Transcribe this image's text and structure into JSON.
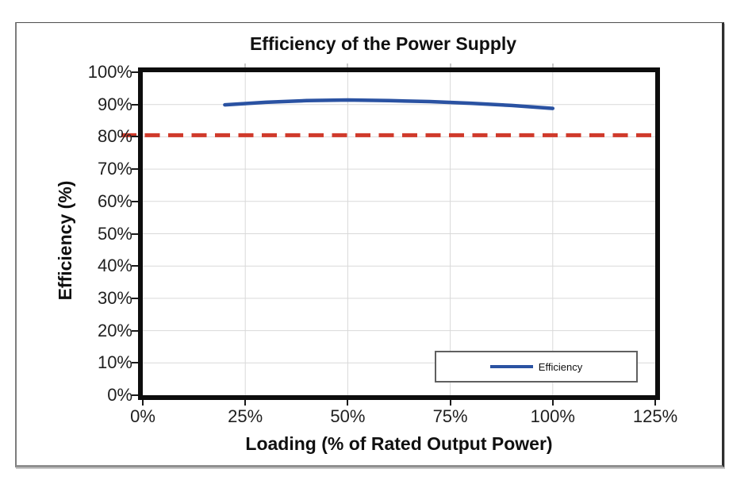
{
  "chart_data": {
    "type": "line",
    "title": "Efficiency of the Power Supply",
    "xlabel": "Loading (% of Rated Output Power)",
    "ylabel": "Efficiency (%)",
    "grid": true,
    "plot_background": "#ffffff",
    "x_axis": {
      "min": 0,
      "max": 125,
      "ticks": [
        {
          "value": 0,
          "label": "0%"
        },
        {
          "value": 25,
          "label": "25%"
        },
        {
          "value": 50,
          "label": "50%"
        },
        {
          "value": 75,
          "label": "75%"
        },
        {
          "value": 100,
          "label": "100%"
        },
        {
          "value": 125,
          "label": "125%"
        }
      ],
      "gridline_values": [
        25,
        50,
        75,
        100
      ]
    },
    "y_axis": {
      "min": 0,
      "max": 100,
      "ticks": [
        {
          "value": 0,
          "label": "0%"
        },
        {
          "value": 10,
          "label": "10%"
        },
        {
          "value": 20,
          "label": "20%"
        },
        {
          "value": 30,
          "label": "30%"
        },
        {
          "value": 40,
          "label": "40%"
        },
        {
          "value": 50,
          "label": "50%"
        },
        {
          "value": 60,
          "label": "60%"
        },
        {
          "value": 70,
          "label": "70%"
        },
        {
          "value": 80,
          "label": "80%"
        },
        {
          "value": 90,
          "label": "90%"
        },
        {
          "value": 100,
          "label": "100%"
        }
      ],
      "gridline_values": [
        10,
        20,
        30,
        40,
        50,
        60,
        70,
        80,
        90
      ]
    },
    "series": [
      {
        "name": "Efficiency",
        "color": "#2A52A2",
        "points": [
          [
            20,
            89.9
          ],
          [
            30,
            90.7
          ],
          [
            40,
            91.2
          ],
          [
            50,
            91.4
          ],
          [
            60,
            91.2
          ],
          [
            70,
            90.9
          ],
          [
            80,
            90.4
          ],
          [
            90,
            89.7
          ],
          [
            100,
            88.8
          ]
        ]
      }
    ],
    "threshold_line": {
      "value": 80.5,
      "style": "dashed",
      "color": "#D03A2B"
    },
    "legend": {
      "position": "inside-bottom-center",
      "entries": [
        {
          "label": "Efficiency",
          "color": "#2A52A2"
        }
      ]
    },
    "colors": {
      "grid": "#D9D9D9",
      "plot_border": "#0D0D0D",
      "text": "#1F1F1F"
    }
  }
}
